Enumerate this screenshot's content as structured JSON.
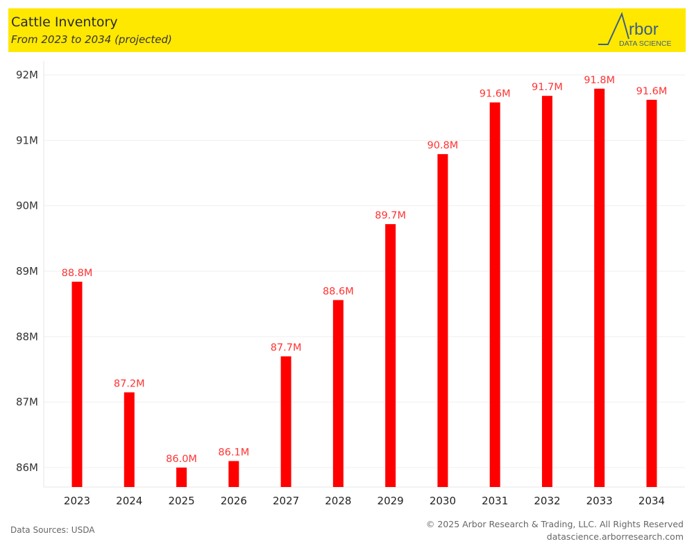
{
  "header": {
    "title": "Cattle Inventory",
    "subtitle": "From 2023 to 2034 (projected)",
    "logo_word": "rbor",
    "logo_tagline": "DATA SCIENCE"
  },
  "footer": {
    "source": "Data Sources: USDA",
    "copyright": "© 2025 Arbor Research & Trading, LLC. All Rights Reserved",
    "website": "datascience.arborresearch.com"
  },
  "colors": {
    "header_bg": "#ffe800",
    "bar": "#ff0000",
    "label": "#ff3333",
    "logo": "#3a5f8a"
  },
  "chart_data": {
    "type": "bar",
    "title": "Cattle Inventory",
    "subtitle": "From 2023 to 2034 (projected)",
    "xlabel": "",
    "ylabel": "",
    "categories": [
      "2023",
      "2024",
      "2025",
      "2026",
      "2027",
      "2028",
      "2029",
      "2030",
      "2031",
      "2032",
      "2033",
      "2034"
    ],
    "values": [
      88.84,
      87.15,
      86.0,
      86.1,
      87.7,
      88.56,
      89.72,
      90.79,
      91.58,
      91.68,
      91.79,
      91.62
    ],
    "data_labels": [
      "88.8M",
      "87.2M",
      "86.0M",
      "86.1M",
      "87.7M",
      "88.6M",
      "89.7M",
      "90.8M",
      "91.6M",
      "91.7M",
      "91.8M",
      "91.6M"
    ],
    "unit": "M head",
    "ylim": [
      85.7,
      92.3
    ],
    "yticks": [
      86,
      87,
      88,
      89,
      90,
      91,
      92
    ],
    "ytick_labels": [
      "86M",
      "87M",
      "88M",
      "89M",
      "90M",
      "91M",
      "92M"
    ],
    "grid": true,
    "legend": "none"
  }
}
